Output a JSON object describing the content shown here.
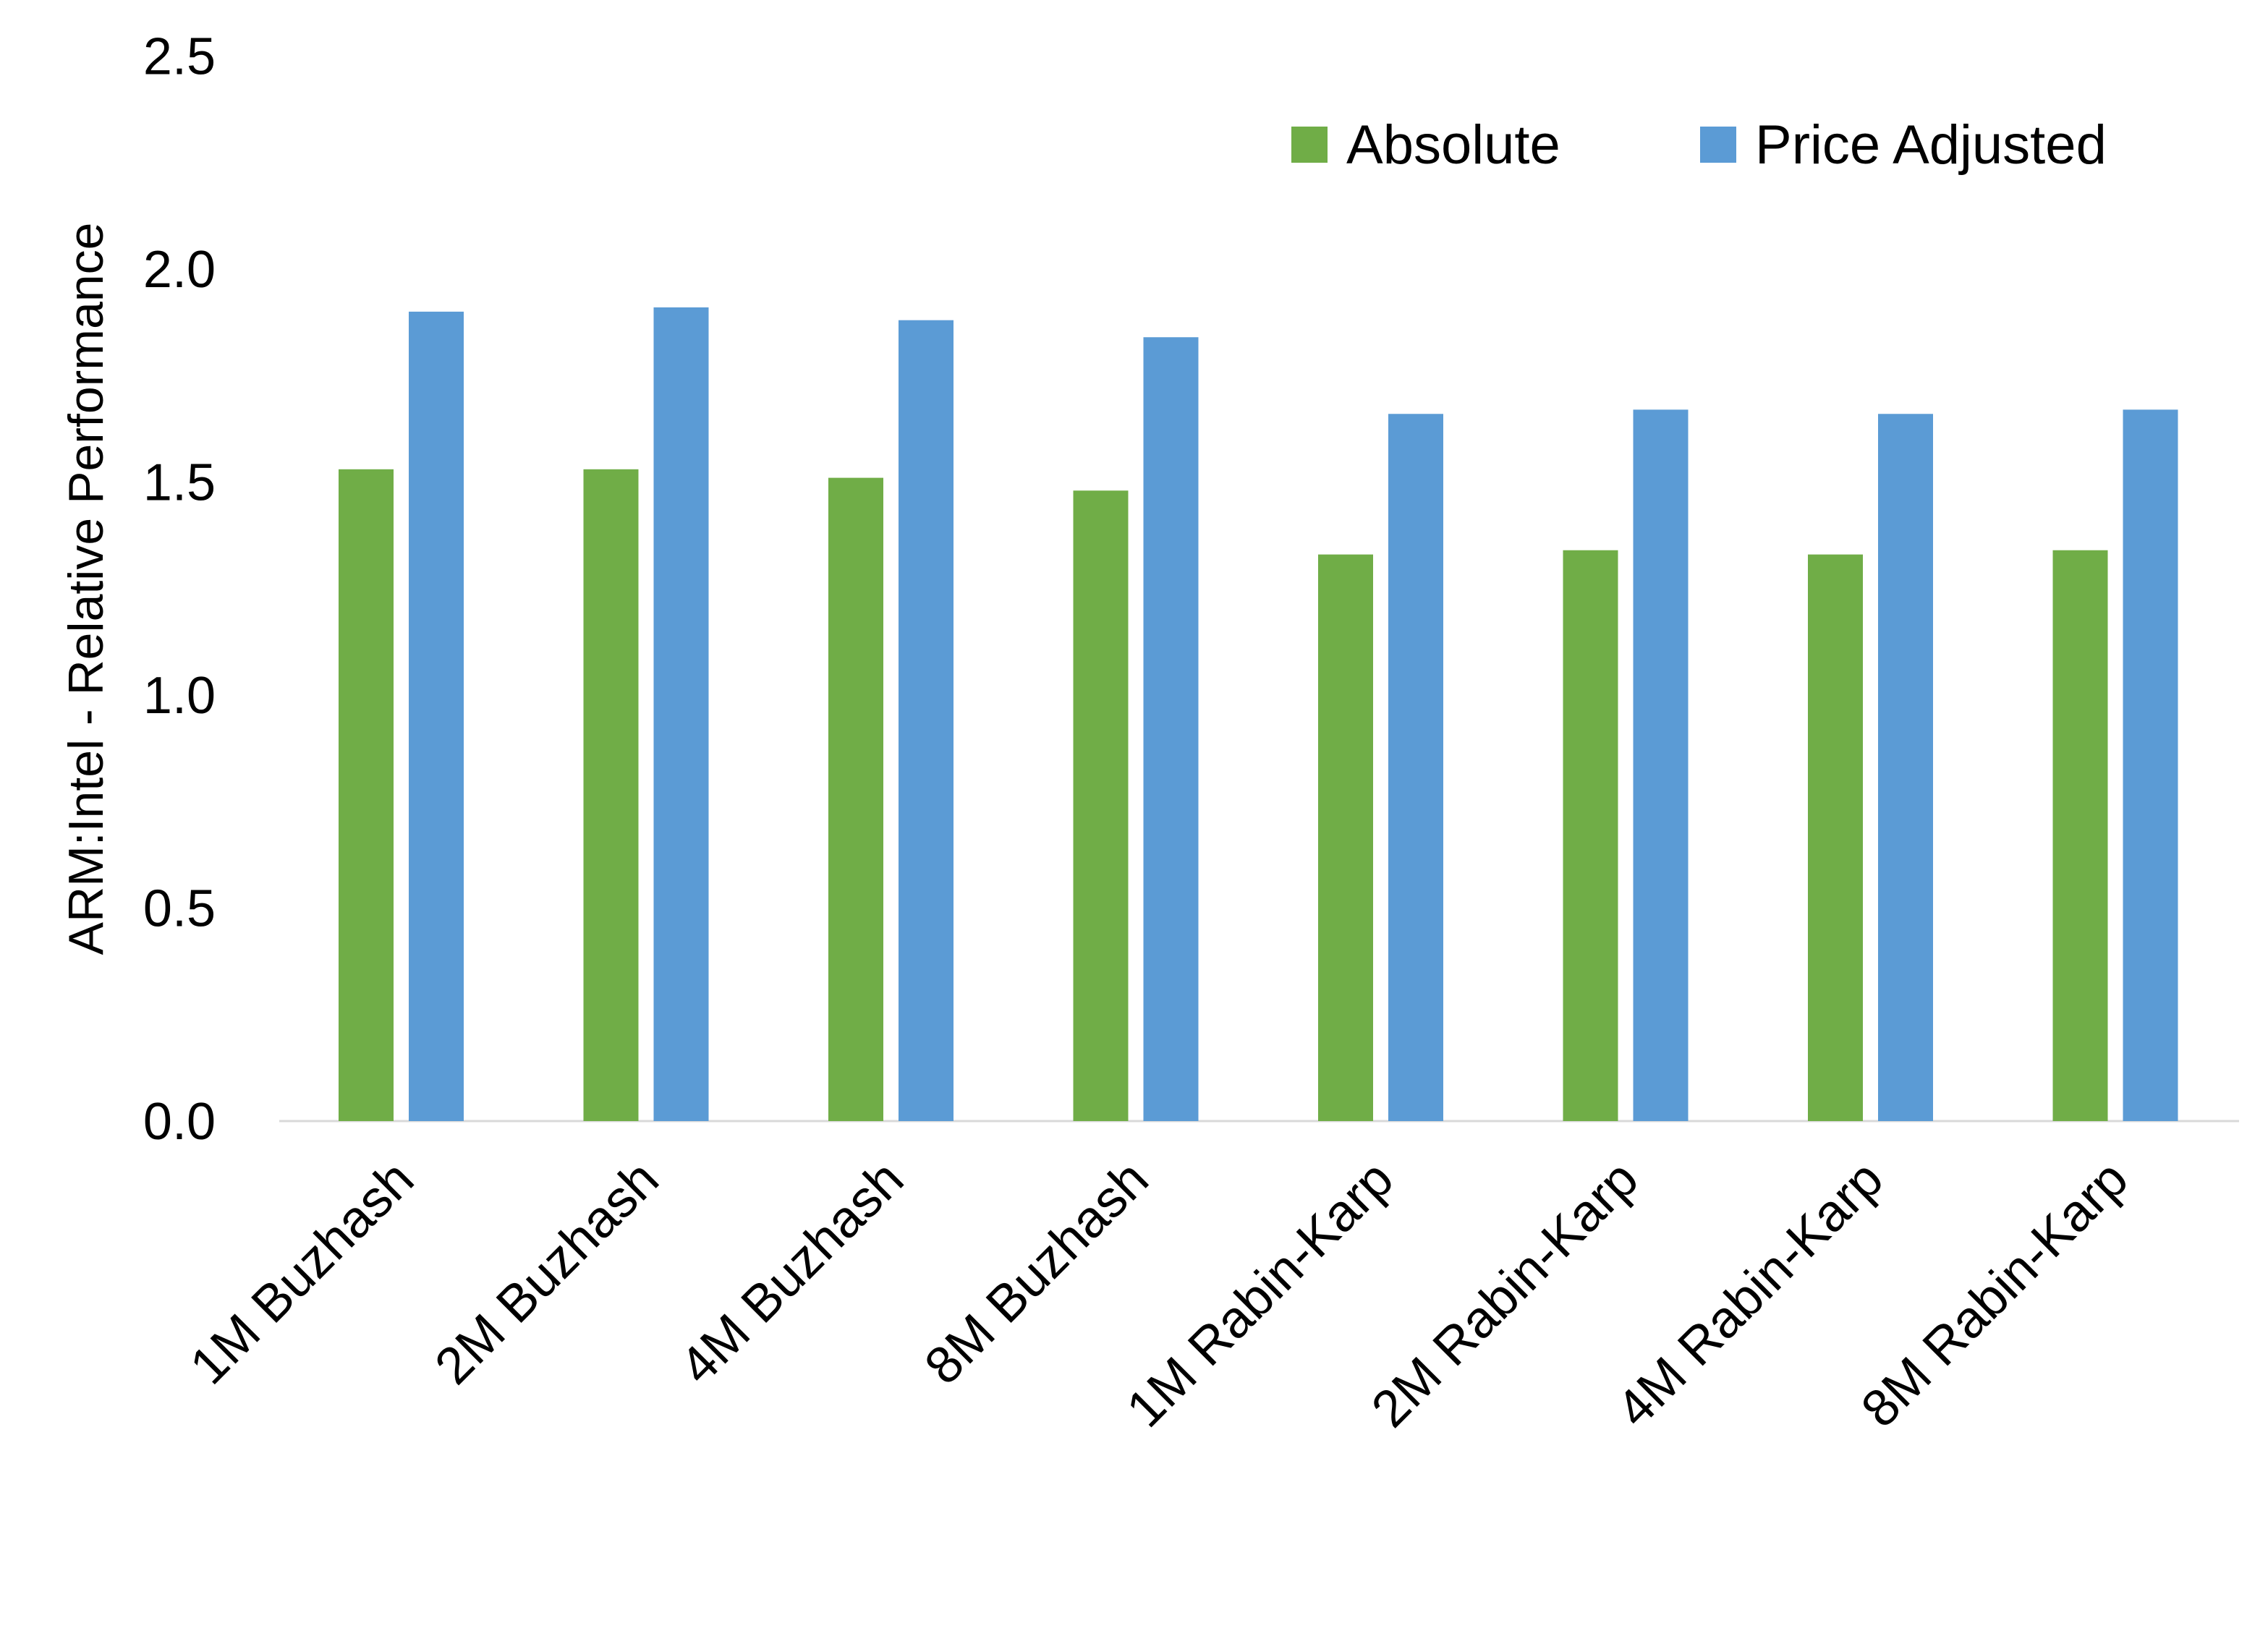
{
  "chart_data": {
    "type": "bar",
    "title": "",
    "xlabel": "",
    "ylabel": "ARM:Intel - Relative Performance",
    "ylim": [
      0,
      2.5
    ],
    "yticks": [
      "0.0",
      "0.5",
      "1.0",
      "1.5",
      "2.0",
      "2.5"
    ],
    "grid": false,
    "legend_position": "top-right",
    "categories": [
      "1M Buzhash",
      "2M Buzhash",
      "4M Buzhash",
      "8M Buzhash",
      "1M Rabin-Karp",
      "2M Rabin-Karp",
      "4M Rabin-Karp",
      "8M Rabin-Karp"
    ],
    "series": [
      {
        "name": "Absolute",
        "color": "#70AD47",
        "values": [
          1.53,
          1.53,
          1.51,
          1.48,
          1.33,
          1.34,
          1.33,
          1.34
        ]
      },
      {
        "name": "Price Adjusted",
        "color": "#5B9BD5",
        "values": [
          1.9,
          1.91,
          1.88,
          1.84,
          1.66,
          1.67,
          1.66,
          1.67
        ]
      }
    ]
  }
}
